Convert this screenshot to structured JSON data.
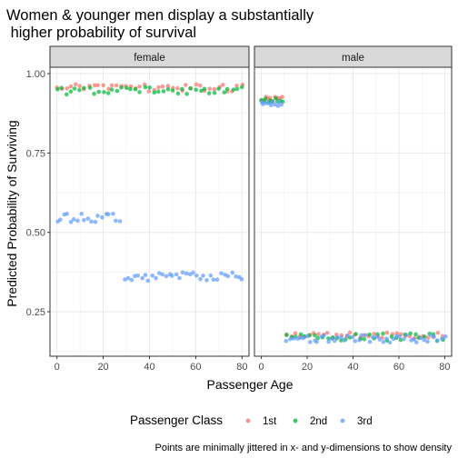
{
  "chart_data": {
    "type": "scatter",
    "title_lines": [
      "Women & younger men display a substantially",
      " higher probability of survival"
    ],
    "xlabel": "Passenger Age",
    "ylabel": "Predicted Probability of Surviving",
    "caption": "Points are minimally jittered in x- and y-dimensions to show density",
    "xlim": [
      -3,
      83
    ],
    "ylim": [
      0.11,
      1.02
    ],
    "x_ticks": [
      0,
      20,
      40,
      60,
      80
    ],
    "y_ticks": [
      0.25,
      0.5,
      0.75,
      1.0
    ],
    "y_tick_labels": [
      "0.25",
      "0.50",
      "0.75",
      "1.00"
    ],
    "grid": true,
    "legend": {
      "title": "Passenger Class",
      "position": "bottom",
      "items": [
        {
          "label": "1st",
          "color": "#F8766D"
        },
        {
          "label": "2nd",
          "color": "#00BA38"
        },
        {
          "label": "3rd",
          "color": "#619CFF"
        }
      ]
    },
    "panels": [
      {
        "strip": "female",
        "series": [
          {
            "class": "1st",
            "segments": [
              {
                "x0": 0,
                "x1": 80,
                "step": 2,
                "y": 0.955,
                "jitter": 0.012
              }
            ]
          },
          {
            "class": "2nd",
            "segments": [
              {
                "x0": 0,
                "x1": 80,
                "step": 2,
                "y": 0.945,
                "jitter": 0.013
              }
            ]
          },
          {
            "class": "3rd",
            "segments": [
              {
                "x0": 0,
                "x1": 27,
                "step": 1.5,
                "y": 0.545,
                "jitter": 0.014
              },
              {
                "x0": 29,
                "x1": 80,
                "step": 1.5,
                "y": 0.36,
                "jitter": 0.014
              }
            ]
          }
        ]
      },
      {
        "strip": "male",
        "series": [
          {
            "class": "1st",
            "segments": [
              {
                "x0": 0,
                "x1": 9,
                "step": 1,
                "y": 0.92,
                "jitter": 0.008
              },
              {
                "x0": 11,
                "x1": 80,
                "step": 2,
                "y": 0.175,
                "jitter": 0.01
              }
            ]
          },
          {
            "class": "2nd",
            "segments": [
              {
                "x0": 0,
                "x1": 9,
                "step": 1,
                "y": 0.915,
                "jitter": 0.008
              },
              {
                "x0": 11,
                "x1": 80,
                "step": 2,
                "y": 0.17,
                "jitter": 0.012
              }
            ]
          },
          {
            "class": "3rd",
            "segments": [
              {
                "x0": 0,
                "x1": 9,
                "step": 1,
                "y": 0.905,
                "jitter": 0.008
              },
              {
                "x0": 11,
                "x1": 80,
                "step": 1.5,
                "y": 0.165,
                "jitter": 0.012
              }
            ]
          }
        ]
      }
    ]
  }
}
